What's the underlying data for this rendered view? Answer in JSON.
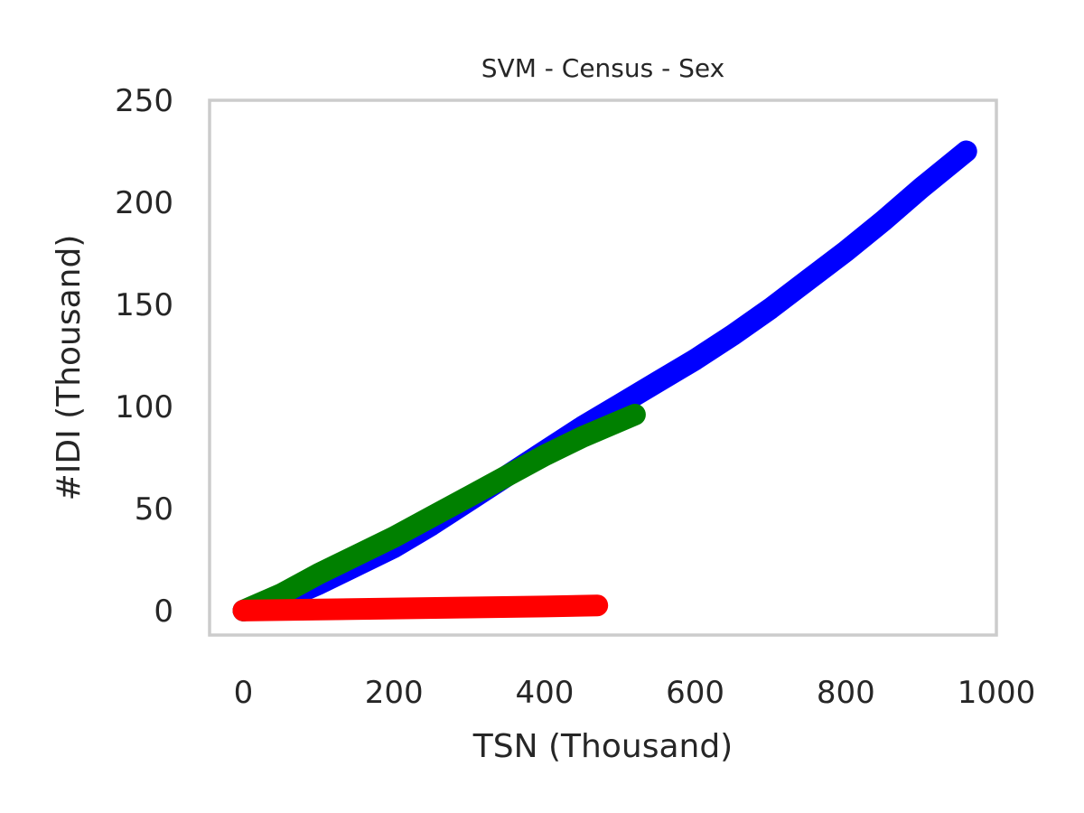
{
  "chart_data": {
    "type": "line",
    "title": "SVM - Census - Sex",
    "xlabel": "TSN (Thousand)",
    "ylabel": "#IDI (Thousand)",
    "xlim": [
      -45,
      1000
    ],
    "ylim": [
      -12,
      250
    ],
    "xticks": [
      0,
      200,
      400,
      600,
      800,
      1000
    ],
    "yticks": [
      0,
      50,
      100,
      150,
      200,
      250
    ],
    "xtick_labels": [
      "0",
      "200",
      "400",
      "600",
      "800",
      "1000"
    ],
    "ytick_labels": [
      "0",
      "50",
      "100",
      "150",
      "200",
      "250"
    ],
    "grid": false,
    "series": [
      {
        "color": "#0000ff",
        "x": [
          0,
          50,
          100,
          150,
          200,
          250,
          300,
          350,
          400,
          450,
          500,
          550,
          600,
          650,
          700,
          750,
          800,
          850,
          900,
          960
        ],
        "y": [
          0,
          5,
          13,
          22,
          31,
          42,
          54,
          66,
          78,
          90,
          101,
          112,
          123,
          135,
          148,
          162,
          176,
          191,
          207,
          225
        ]
      },
      {
        "color": "#008000",
        "x": [
          0,
          50,
          100,
          150,
          200,
          250,
          300,
          350,
          400,
          450,
          520
        ],
        "y": [
          0,
          8,
          18,
          27,
          36,
          46,
          56,
          66,
          76,
          85,
          96
        ]
      },
      {
        "color": "#ff0000",
        "x": [
          0,
          100,
          200,
          300,
          400,
          470
        ],
        "y": [
          0,
          0.5,
          1,
          1.5,
          2,
          2.5
        ]
      }
    ]
  }
}
